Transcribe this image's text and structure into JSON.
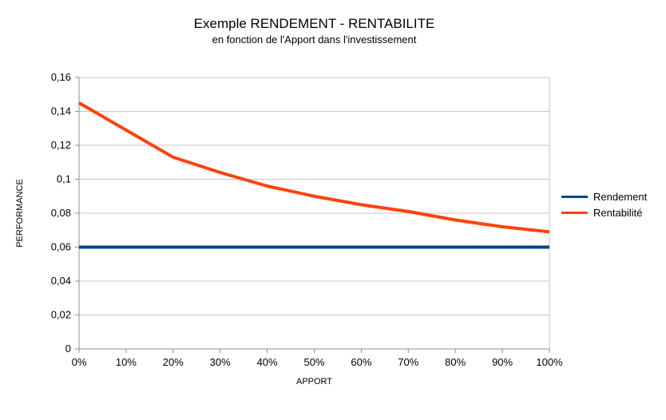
{
  "title": "Exemple RENDEMENT - RENTABILITE",
  "subtitle": "en fonction de l'Apport dans l'investissement",
  "chart_data": {
    "type": "line",
    "title": "Exemple RENDEMENT - RENTABILITE",
    "subtitle": "en fonction de l'Apport dans l'investissement",
    "xlabel": "APPORT",
    "ylabel": "PERFORMANCE",
    "categories": [
      "0%",
      "10%",
      "20%",
      "30%",
      "40%",
      "50%",
      "60%",
      "70%",
      "80%",
      "90%",
      "100%"
    ],
    "x_values": [
      0,
      10,
      20,
      30,
      40,
      50,
      60,
      70,
      80,
      90,
      100
    ],
    "series": [
      {
        "name": "Rendement",
        "color": "#004586",
        "values": [
          0.06,
          0.06,
          0.06,
          0.06,
          0.06,
          0.06,
          0.06,
          0.06,
          0.06,
          0.06,
          0.06
        ]
      },
      {
        "name": "Rentabilité",
        "color": "#FF420E",
        "values": [
          0.145,
          0.129,
          0.113,
          0.104,
          0.096,
          0.09,
          0.085,
          0.081,
          0.076,
          0.072,
          0.069
        ]
      }
    ],
    "ylim": [
      0,
      0.16
    ],
    "y_ticks": [
      0,
      0.02,
      0.04,
      0.06,
      0.08,
      0.1,
      0.12,
      0.14,
      0.16
    ],
    "y_tick_labels": [
      "0",
      "0,02",
      "0,04",
      "0,06",
      "0,08",
      "0,1",
      "0,12",
      "0,14",
      "0,16"
    ],
    "grid": "horizontal",
    "legend_position": "right",
    "colors": {
      "background": "#ffffff",
      "grid": "#c6c6c6",
      "axis": "#8f8f8f",
      "text": "#000000"
    }
  }
}
